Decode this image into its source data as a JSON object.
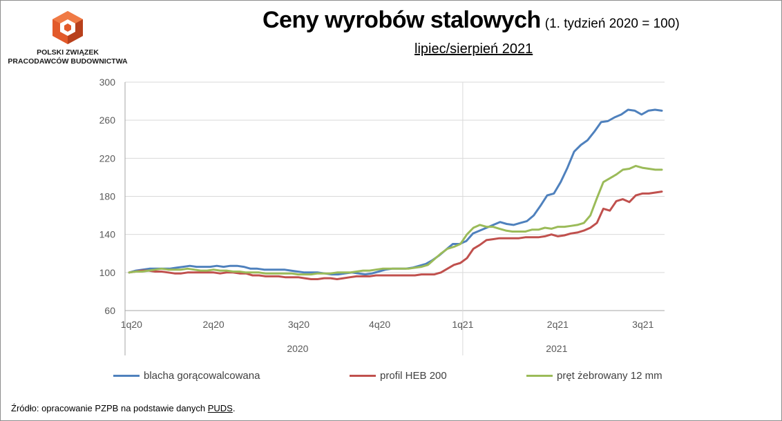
{
  "logo": {
    "line1": "POLSKI ZWIĄZEK",
    "line2": "PRACODAWCÓW BUDOWNICTWA"
  },
  "title": "Ceny wyrobów stalowych",
  "title_note": "(1. tydzień 2020 = 100)",
  "subtitle": "lipiec/sierpień 2021",
  "source_prefix": "Źródło: opracowanie PZPB na podstawie danych ",
  "source_link": "PUDS",
  "source_suffix": ".",
  "colors": {
    "blue": "#4f81bd",
    "red": "#c0504d",
    "green": "#9bbb59",
    "grid": "#d9d9d9",
    "axis": "#a6a6a6",
    "text": "#595959"
  },
  "chart_data": {
    "type": "line",
    "ylim": [
      60,
      300
    ],
    "yticks": [
      60,
      100,
      140,
      180,
      220,
      260,
      300
    ],
    "quarter_labels": [
      "1q20",
      "2q20",
      "3q20",
      "4q20",
      "1q21",
      "2q21",
      "3q21"
    ],
    "year_labels": [
      "2020",
      "2021"
    ],
    "grid": "horizontal",
    "legend_position": "bottom",
    "series": [
      {
        "name": "blacha gorącowalcowana",
        "color": "#4f81bd",
        "values": [
          100,
          102,
          103,
          104,
          104,
          104,
          104,
          105,
          106,
          107,
          106,
          106,
          106,
          107,
          106,
          107,
          107,
          106,
          104,
          104,
          103,
          103,
          103,
          103,
          102,
          101,
          100,
          100,
          100,
          99,
          98,
          98,
          99,
          100,
          99,
          98,
          99,
          101,
          103,
          104,
          104,
          104,
          105,
          107,
          109,
          113,
          118,
          124,
          130,
          130,
          133,
          141,
          144,
          147,
          150,
          153,
          151,
          150,
          152,
          154,
          160,
          170,
          181,
          183,
          195,
          210,
          227,
          234,
          239,
          248,
          258,
          259,
          263,
          266,
          271,
          270,
          266,
          270,
          271,
          270
        ]
      },
      {
        "name": "profil HEB 200",
        "color": "#c0504d",
        "values": [
          100,
          101,
          102,
          102,
          101,
          101,
          100,
          99,
          99,
          100,
          100,
          100,
          100,
          100,
          99,
          100,
          100,
          99,
          99,
          97,
          97,
          96,
          96,
          96,
          95,
          95,
          95,
          94,
          93,
          93,
          94,
          94,
          93,
          94,
          95,
          96,
          96,
          96,
          97,
          97,
          97,
          97,
          97,
          97,
          97,
          98,
          98,
          98,
          100,
          104,
          108,
          110,
          115,
          125,
          129,
          134,
          135,
          136,
          136,
          136,
          136,
          137,
          137,
          137,
          138,
          140,
          138,
          139,
          141,
          142,
          144,
          147,
          152,
          167,
          165,
          175,
          177,
          174,
          181,
          183,
          183,
          184,
          185
        ]
      },
      {
        "name": "pręt żebrowany 12 mm",
        "color": "#9bbb59",
        "values": [
          100,
          101,
          101,
          102,
          103,
          104,
          103,
          103,
          103,
          104,
          103,
          102,
          102,
          103,
          102,
          102,
          101,
          101,
          100,
          100,
          100,
          99,
          99,
          99,
          99,
          99,
          98,
          98,
          98,
          99,
          99,
          99,
          100,
          100,
          100,
          101,
          102,
          102,
          103,
          104,
          104,
          104,
          104,
          104,
          105,
          106,
          108,
          114,
          120,
          125,
          127,
          130,
          140,
          147,
          150,
          148,
          148,
          146,
          144,
          143,
          143,
          143,
          145,
          145,
          147,
          146,
          148,
          148,
          149,
          150,
          152,
          160,
          178,
          195,
          199,
          203,
          208,
          209,
          212,
          210,
          209,
          208,
          208
        ]
      }
    ]
  }
}
